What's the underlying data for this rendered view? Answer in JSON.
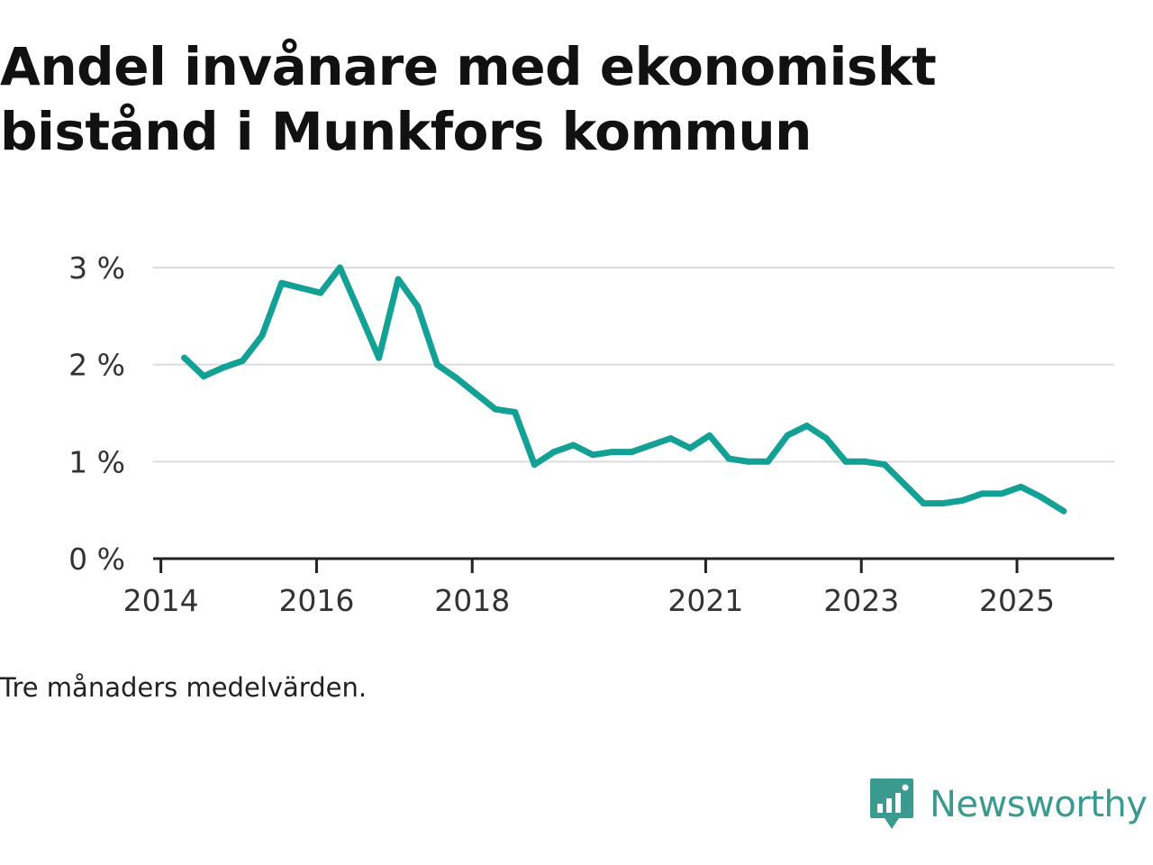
{
  "title": "Andel invånare med ekonomiskt bistånd i Munkfors kommun",
  "footnote": "Tre månaders medelvärden.",
  "brand": {
    "name": "Newsworthy",
    "icon": "newsworthy-logo-icon",
    "color": "#3a9a90"
  },
  "chart_data": {
    "type": "line",
    "title": "Andel invånare med ekonomiskt bistånd i Munkfors kommun",
    "xlabel": "",
    "ylabel": "",
    "xlim": [
      2013.9,
      2026.25
    ],
    "ylim": [
      0,
      3
    ],
    "grid": true,
    "line_color": "#13a095",
    "x_ticks": [
      {
        "value": 2014,
        "label": "2014"
      },
      {
        "value": 2016,
        "label": "2016"
      },
      {
        "value": 2018,
        "label": "2018"
      },
      {
        "value": 2021,
        "label": "2021"
      },
      {
        "value": 2023,
        "label": "2023"
      },
      {
        "value": 2025,
        "label": "2025"
      }
    ],
    "y_ticks": [
      {
        "value": 0,
        "label": "0 %"
      },
      {
        "value": 1,
        "label": "1 %"
      },
      {
        "value": 2,
        "label": "2 %"
      },
      {
        "value": 3,
        "label": "3 %"
      }
    ],
    "series": [
      {
        "name": "Andel invånare med ekonomiskt bistånd",
        "x": [
          2014.3,
          2014.55,
          2014.8,
          2015.05,
          2015.3,
          2015.55,
          2015.8,
          2016.05,
          2016.3,
          2016.55,
          2016.8,
          2017.05,
          2017.3,
          2017.55,
          2017.8,
          2018.05,
          2018.3,
          2018.55,
          2018.8,
          2019.05,
          2019.3,
          2019.55,
          2019.8,
          2020.05,
          2020.3,
          2020.55,
          2020.8,
          2021.05,
          2021.3,
          2021.55,
          2021.8,
          2022.05,
          2022.3,
          2022.55,
          2022.8,
          2023.05,
          2023.3,
          2023.55,
          2023.8,
          2024.05,
          2024.3,
          2024.55,
          2024.8,
          2025.05,
          2025.3,
          2025.6
        ],
        "values": [
          2.07,
          1.88,
          1.97,
          2.04,
          2.3,
          2.84,
          2.79,
          2.74,
          3.0,
          2.54,
          2.07,
          2.88,
          2.6,
          2.0,
          1.86,
          1.7,
          1.54,
          1.51,
          0.97,
          1.1,
          1.17,
          1.07,
          1.1,
          1.1,
          1.17,
          1.24,
          1.14,
          1.27,
          1.03,
          1.0,
          1.0,
          1.27,
          1.37,
          1.24,
          1.0,
          1.0,
          0.97,
          0.77,
          0.57,
          0.57,
          0.6,
          0.67,
          0.67,
          0.74,
          0.64,
          0.49
        ]
      }
    ]
  }
}
